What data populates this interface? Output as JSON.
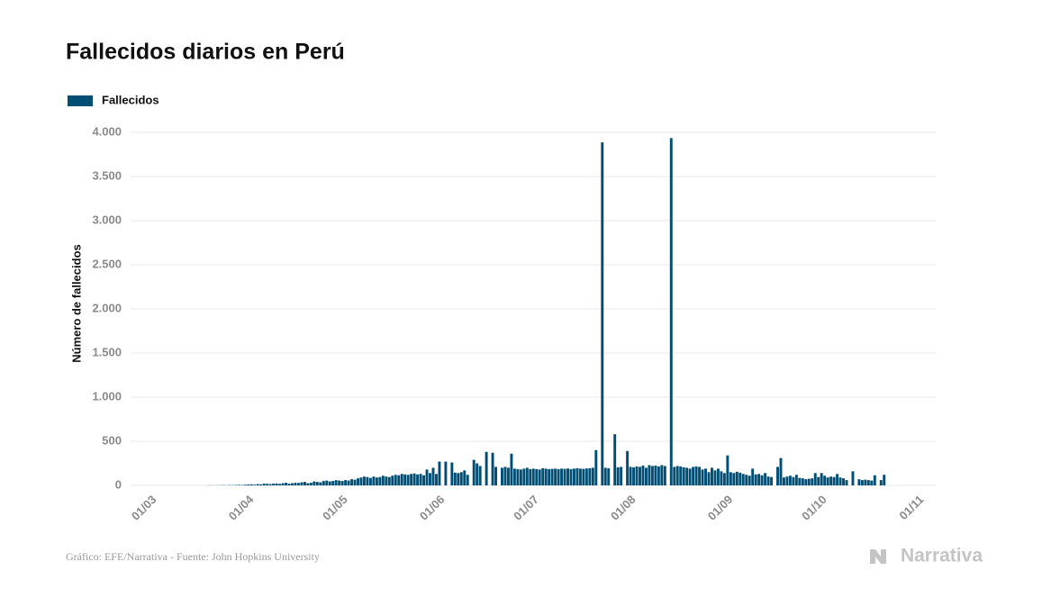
{
  "chart_data": {
    "type": "bar",
    "title": "Fallecidos diarios en Perú",
    "y_label": "Número de fallecidos",
    "source": "Gráfico: EFE/Narrativa - Fuente: John Hopkins University",
    "brand": "Narrativa",
    "series": [
      {
        "name": "Fallecidos",
        "color": "#004e74",
        "values": [
          0,
          0,
          0,
          0,
          0,
          0,
          0,
          0,
          0,
          0,
          0,
          0,
          0,
          0,
          0,
          0,
          0,
          0,
          1,
          2,
          1,
          2,
          2,
          3,
          2,
          4,
          3,
          5,
          6,
          5,
          8,
          10,
          12,
          8,
          15,
          12,
          20,
          18,
          15,
          20,
          22,
          18,
          25,
          30,
          20,
          25,
          30,
          28,
          35,
          40,
          25,
          30,
          45,
          40,
          35,
          50,
          55,
          45,
          50,
          60,
          55,
          50,
          60,
          55,
          70,
          65,
          80,
          90,
          100,
          95,
          85,
          100,
          90,
          95,
          110,
          100,
          95,
          110,
          120,
          115,
          130,
          125,
          120,
          130,
          135,
          125,
          130,
          115,
          180,
          140,
          200,
          130,
          270,
          0,
          270,
          0,
          260,
          145,
          140,
          150,
          170,
          120,
          0,
          290,
          250,
          220,
          0,
          380,
          0,
          370,
          210,
          0,
          200,
          210,
          200,
          360,
          190,
          185,
          180,
          190,
          200,
          185,
          190,
          185,
          180,
          195,
          190,
          185,
          188,
          190,
          185,
          190,
          188,
          192,
          185,
          190,
          195,
          190,
          188,
          192,
          195,
          200,
          400,
          0,
          3887,
          200,
          195,
          0,
          580,
          205,
          210,
          0,
          390,
          210,
          205,
          215,
          210,
          225,
          200,
          230,
          220,
          225,
          215,
          230,
          220,
          0,
          3935,
          210,
          220,
          215,
          205,
          200,
          190,
          210,
          215,
          210,
          180,
          190,
          150,
          200,
          170,
          190,
          160,
          140,
          340,
          150,
          140,
          155,
          145,
          130,
          120,
          110,
          190,
          125,
          130,
          115,
          140,
          100,
          95,
          0,
          210,
          310,
          90,
          100,
          110,
          95,
          120,
          85,
          80,
          70,
          75,
          80,
          140,
          95,
          140,
          110,
          90,
          100,
          95,
          130,
          90,
          80,
          60,
          0,
          160,
          0,
          70,
          60,
          65,
          60,
          55,
          115,
          0,
          60,
          120,
          null,
          null,
          null,
          null,
          null,
          null,
          null,
          null,
          null,
          null,
          null
        ]
      }
    ],
    "categories": [
      "01/03",
      null,
      null,
      null,
      null,
      null,
      null,
      null,
      null,
      null,
      null,
      null,
      null,
      null,
      null,
      null,
      null,
      null,
      null,
      null,
      null,
      null,
      null,
      null,
      null,
      null,
      null,
      null,
      null,
      null,
      null,
      "01/04",
      null,
      null,
      null,
      null,
      null,
      null,
      null,
      null,
      null,
      null,
      null,
      null,
      null,
      null,
      null,
      null,
      null,
      null,
      null,
      null,
      null,
      null,
      null,
      null,
      null,
      null,
      null,
      null,
      null,
      "01/05",
      null,
      null,
      null,
      null,
      null,
      null,
      null,
      null,
      null,
      null,
      null,
      null,
      null,
      null,
      null,
      null,
      null,
      null,
      null,
      null,
      null,
      null,
      null,
      null,
      null,
      null,
      null,
      null,
      null,
      null,
      "01/06",
      null,
      null,
      null,
      null,
      null,
      null,
      null,
      null,
      null,
      null,
      null,
      null,
      null,
      null,
      null,
      null,
      null,
      null,
      null,
      null,
      null,
      null,
      null,
      null,
      null,
      null,
      null,
      null,
      null,
      "01/07",
      null,
      null,
      null,
      null,
      null,
      null,
      null,
      null,
      null,
      null,
      null,
      null,
      null,
      null,
      null,
      null,
      null,
      null,
      null,
      null,
      null,
      null,
      null,
      null,
      null,
      null,
      null,
      null,
      null,
      null,
      "01/08",
      null,
      null,
      null,
      null,
      null,
      null,
      null,
      null,
      null,
      null,
      null,
      null,
      null,
      null,
      null,
      null,
      null,
      null,
      null,
      null,
      null,
      null,
      null,
      null,
      null,
      null,
      null,
      null,
      null,
      null,
      "01/09",
      null,
      null,
      null,
      null,
      null,
      null,
      null,
      null,
      null,
      null,
      null,
      null,
      null,
      null,
      null,
      null,
      null,
      null,
      null,
      null,
      null,
      null,
      null,
      null,
      null,
      null,
      null,
      null,
      null,
      "01/10",
      null,
      null,
      null,
      null,
      null,
      null,
      null,
      null,
      null,
      null,
      null,
      null,
      null,
      null,
      null,
      null,
      null,
      null,
      null,
      null,
      null,
      null,
      null,
      null,
      null,
      null,
      null,
      null,
      null,
      null,
      "01/11"
    ],
    "ylim": [
      0,
      4000
    ],
    "yticks": [
      0,
      500,
      {
        "value": 1000,
        "label": "1.000"
      },
      {
        "value": 1500,
        "label": "1.500"
      },
      {
        "value": 2000,
        "label": "2.000"
      },
      {
        "value": 2500,
        "label": "2.500"
      },
      {
        "value": 3000,
        "label": "3.000"
      },
      {
        "value": 3500,
        "label": "3.500"
      },
      {
        "value": 4000,
        "label": "4.000"
      }
    ],
    "grid": true
  }
}
